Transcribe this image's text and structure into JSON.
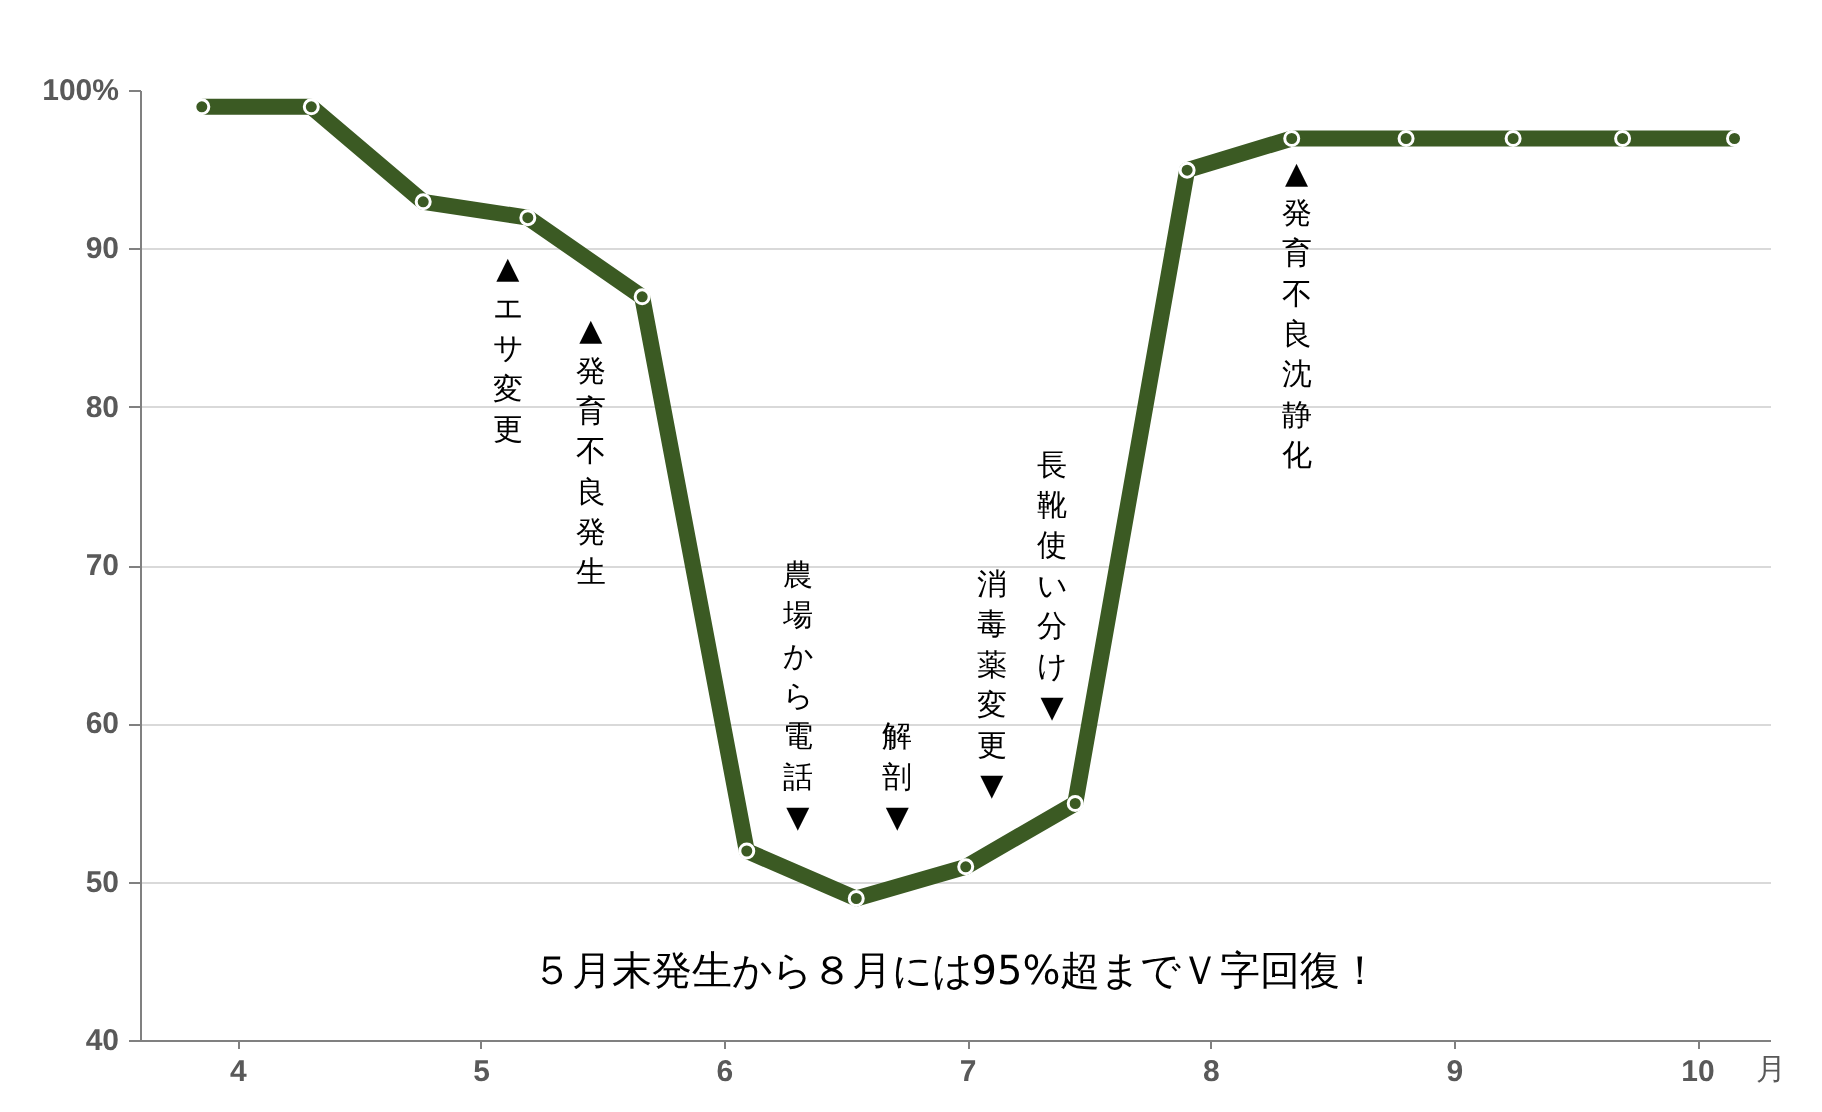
{
  "chart_data": {
    "type": "line",
    "xlabel": "月",
    "x": [
      3.85,
      4.3,
      4.76,
      5.19,
      5.66,
      6.09,
      6.54,
      6.99,
      7.44,
      7.9,
      8.33,
      8.8,
      9.24,
      9.69,
      10.15
    ],
    "series": [
      {
        "color": "#3b5a23",
        "values": [
          99,
          99,
          93,
          92,
          87,
          52,
          49,
          51,
          55,
          95,
          97,
          97,
          97,
          97,
          97
        ]
      }
    ],
    "xlim": [
      3.6,
      10.3
    ],
    "xticks": [
      4,
      5,
      6,
      7,
      8,
      9,
      10
    ],
    "ylim": [
      40,
      100
    ],
    "yticks": [
      40,
      50,
      60,
      70,
      80,
      90,
      {
        "value": 100,
        "label": "100%"
      }
    ],
    "grid": "y",
    "marker": "circle",
    "line_style": "solid",
    "annotations": [
      "▲エサ変更",
      "▲発育不良発生",
      "農場から電話▼",
      "解剖▼",
      "消毒薬変更▼",
      "長靴使い分け▼",
      "▲発育不良沈静化",
      "５月末発生から８月には95%超までＶ字回復！"
    ]
  }
}
